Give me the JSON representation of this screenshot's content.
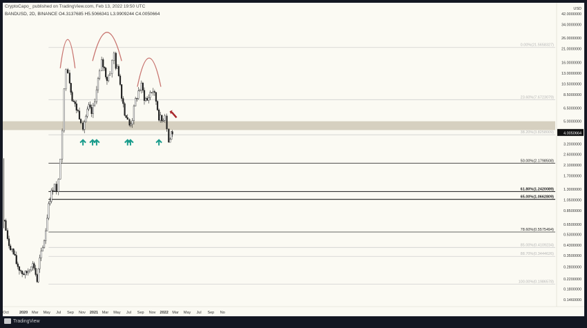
{
  "header": {
    "publisher": "CryptoCapo_ published on TradingView.com, Feb 13, 2022 19:50 UTC",
    "symbol_line": "BANDUSD, 2D, BINANCE  O4.3137685  H5.5066341  L3.9909244  C4.0050664"
  },
  "footer": {
    "brand": "TradingView"
  },
  "colors": {
    "background": "#fbfaf3",
    "candle_up": "#ffffff",
    "candle_down": "#222222",
    "fib_line": "#333333",
    "fib_faint": "#cfcfcf",
    "support_zone": "#cfc8b6",
    "arc": "#c8746f",
    "arrow": "#1a9c8c",
    "price_badge": "#111111",
    "top_arrow": "#a8262b"
  },
  "chart_data": {
    "type": "candlestick",
    "scale": "log",
    "y_axis_label": "USD",
    "y_ticks": [
      42.0,
      34.0,
      26.0,
      21.0,
      16.0,
      13.0,
      10.5,
      8.5,
      6.5,
      5.0,
      4.0,
      3.2,
      2.6,
      2.1,
      1.7,
      1.3,
      1.05,
      0.85,
      0.65,
      0.53,
      0.43,
      0.35,
      0.28,
      0.22,
      0.18,
      0.146
    ],
    "y_tick_labels": [
      "42.0000000",
      "34.0000000",
      "26.0000000",
      "21.0000000",
      "16.0000000",
      "13.0000000",
      "10.5000000",
      "8.5000000",
      "6.5000000",
      "5.0000000",
      "4.0000000",
      "3.2000000",
      "2.6000000",
      "2.1000000",
      "1.7000000",
      "1.3000000",
      "1.0500000",
      "0.8500000",
      "0.6500000",
      "0.5300000",
      "0.4300000",
      "0.3500000",
      "0.2800000",
      "0.2200000",
      "0.1800000",
      "0.1460000"
    ],
    "x_labels": [
      "Oct",
      "2020",
      "Mar",
      "May",
      "Jul",
      "Sep",
      "Nov",
      "2021",
      "Mar",
      "May",
      "Jul",
      "Sep",
      "Nov",
      "2022",
      "Mar",
      "May",
      "Jul",
      "Sep",
      "No"
    ],
    "bold_x_labels": [
      "2020",
      "2021",
      "2022"
    ],
    "fib_levels": [
      {
        "label": "0.00%(21.5658327)",
        "value": 21.5658327,
        "style": "faint"
      },
      {
        "label": "23.60%(7.6723079)",
        "value": 7.6723079,
        "style": "faint"
      },
      {
        "label": "38.20%(3.8258009)",
        "value": 3.8258009,
        "style": "faint"
      },
      {
        "label": "50.00%(2.1798508)",
        "value": 2.1798508,
        "style": "normal"
      },
      {
        "label": "61.80%(1.2420089)",
        "value": 1.2420089,
        "style": "bold"
      },
      {
        "label": "65.00%(1.0662809)",
        "value": 1.0662809,
        "style": "bold"
      },
      {
        "label": "78.60%(0.5575494)",
        "value": 0.5575494,
        "style": "normal"
      },
      {
        "label": "85.00%(0.4109234)",
        "value": 0.4109234,
        "style": "faint"
      },
      {
        "label": "88.70%(0.3444626)",
        "value": 0.3444626,
        "style": "faint"
      },
      {
        "label": "100.00%(0.1986578)",
        "value": 0.1986578,
        "style": "faint"
      }
    ],
    "support_zone": [
      4.2,
      5.0
    ],
    "last_price_label": "4.0050664",
    "last_price": 4.0050664,
    "price_path": [
      [
        "2019-09-20",
        1.3
      ],
      [
        "2019-09-25",
        0.7
      ],
      [
        "2019-10-01",
        0.58
      ],
      [
        "2019-10-10",
        0.46
      ],
      [
        "2019-10-25",
        0.42
      ],
      [
        "2019-11-10",
        0.36
      ],
      [
        "2019-11-25",
        0.3
      ],
      [
        "2019-12-10",
        0.27
      ],
      [
        "2019-12-25",
        0.25
      ],
      [
        "2020-01-10",
        0.24
      ],
      [
        "2020-01-25",
        0.26
      ],
      [
        "2020-02-10",
        0.3
      ],
      [
        "2020-02-25",
        0.28
      ],
      [
        "2020-03-12",
        0.21
      ],
      [
        "2020-03-25",
        0.32
      ],
      [
        "2020-04-10",
        0.4
      ],
      [
        "2020-04-25",
        0.58
      ],
      [
        "2020-05-10",
        1.0
      ],
      [
        "2020-05-25",
        1.2
      ],
      [
        "2020-06-10",
        1.5
      ],
      [
        "2020-06-20",
        1.2
      ],
      [
        "2020-07-01",
        1.5
      ],
      [
        "2020-07-10",
        2.5
      ],
      [
        "2020-07-20",
        4.5
      ],
      [
        "2020-07-30",
        9.0
      ],
      [
        "2020-08-08",
        15.0
      ],
      [
        "2020-08-18",
        14.0
      ],
      [
        "2020-08-28",
        11.0
      ],
      [
        "2020-09-10",
        8.0
      ],
      [
        "2020-09-25",
        6.8
      ],
      [
        "2020-10-10",
        6.0
      ],
      [
        "2020-10-25",
        5.2
      ],
      [
        "2020-11-05",
        4.6
      ],
      [
        "2020-11-20",
        5.5
      ],
      [
        "2020-12-05",
        6.5
      ],
      [
        "2020-12-20",
        5.8
      ],
      [
        "2021-01-05",
        7.2
      ],
      [
        "2021-01-15",
        10.0
      ],
      [
        "2021-01-30",
        13.0
      ],
      [
        "2021-02-10",
        16.0
      ],
      [
        "2021-02-25",
        14.0
      ],
      [
        "2021-03-10",
        11.5
      ],
      [
        "2021-03-25",
        13.5
      ],
      [
        "2021-04-05",
        16.0
      ],
      [
        "2021-04-15",
        19.0
      ],
      [
        "2021-04-25",
        15.0
      ],
      [
        "2021-05-10",
        13.0
      ],
      [
        "2021-05-25",
        8.5
      ],
      [
        "2021-06-10",
        6.0
      ],
      [
        "2021-06-25",
        5.0
      ],
      [
        "2021-07-05",
        4.6
      ],
      [
        "2021-07-20",
        5.3
      ],
      [
        "2021-08-05",
        7.5
      ],
      [
        "2021-08-20",
        9.0
      ],
      [
        "2021-09-05",
        10.0
      ],
      [
        "2021-09-20",
        8.0
      ],
      [
        "2021-10-05",
        7.5
      ],
      [
        "2021-10-20",
        8.8
      ],
      [
        "2021-11-05",
        9.2
      ],
      [
        "2021-11-20",
        7.5
      ],
      [
        "2021-12-05",
        5.5
      ],
      [
        "2021-12-20",
        5.0
      ],
      [
        "2022-01-05",
        5.8
      ],
      [
        "2022-01-15",
        4.5
      ],
      [
        "2022-01-25",
        3.3
      ],
      [
        "2022-02-01",
        3.5
      ],
      [
        "2022-02-08",
        4.0
      ],
      [
        "2022-02-13",
        4.0050664
      ]
    ],
    "annotations": {
      "arcs": [
        {
          "from": "2020-07-10",
          "peak": "2020-08-18",
          "to": "2020-09-25",
          "level": 26.0
        },
        {
          "from": "2020-12-25",
          "peak": "2021-03-10",
          "to": "2021-05-25",
          "level": 30.0
        },
        {
          "from": "2021-08-15",
          "peak": "2021-10-15",
          "to": "2021-12-15",
          "level": 18.0
        }
      ],
      "support_arrows": [
        "2020-11-05",
        "2020-12-25",
        "2021-01-15",
        "2021-06-25",
        "2021-07-10",
        "2021-12-05"
      ],
      "top_arrow": "2022-02-20"
    }
  }
}
